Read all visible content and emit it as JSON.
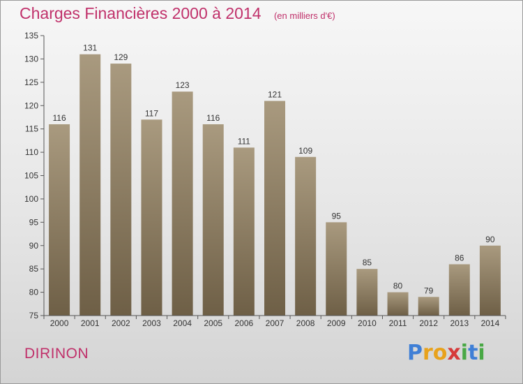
{
  "header": {
    "title": "Charges Financières 2000 à 2014",
    "unit": "(en milliers d'€)"
  },
  "footer": {
    "commune": "DIRINON",
    "brand": "Proxiti",
    "brand_letters": [
      "P",
      "r",
      "o",
      "x",
      "i",
      "t",
      "i"
    ],
    "brand_colors": [
      "#3f7fd6",
      "#e8a21c",
      "#e8a21c",
      "#d63a3a",
      "#49a845",
      "#3f7fd6",
      "#49a845"
    ]
  },
  "colors": {
    "bar_light": "#a99a7f",
    "bar_dark": "#6e5f46",
    "title": "#c0306a"
  },
  "chart_data": {
    "type": "bar",
    "title": "Charges Financières 2000 à 2014",
    "subtitle": "(en milliers d'€)",
    "categories": [
      "2000",
      "2001",
      "2002",
      "2003",
      "2004",
      "2005",
      "2006",
      "2007",
      "2008",
      "2009",
      "2010",
      "2011",
      "2012",
      "2013",
      "2014"
    ],
    "values": [
      116,
      131,
      129,
      117,
      123,
      116,
      111,
      121,
      109,
      95,
      85,
      80,
      79,
      86,
      90
    ],
    "ylim": [
      75,
      135
    ],
    "yticks": [
      75,
      80,
      85,
      90,
      95,
      100,
      105,
      110,
      115,
      120,
      125,
      130,
      135
    ],
    "grid": false
  }
}
